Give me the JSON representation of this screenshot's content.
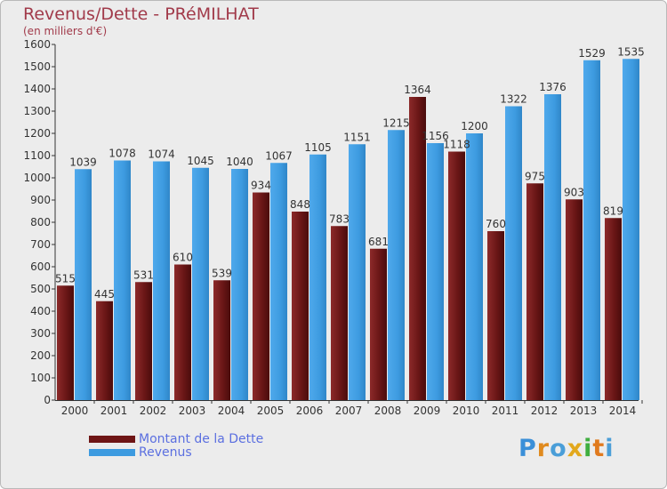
{
  "header": {
    "title": "Revenus/Dette - PRéMILHAT",
    "subtitle": "(en milliers d'€)"
  },
  "colors": {
    "debt": "#7a1c1c",
    "revenue": "#3d9be0",
    "text_accent": "#a13a4a",
    "legend_text": "#5b6fe0"
  },
  "legend": {
    "items": [
      {
        "label": "Montant de la Dette",
        "color": "#6e1515"
      },
      {
        "label": "Revenus",
        "color": "#3d9be0"
      }
    ]
  },
  "logo": {
    "text": "Proxiti"
  },
  "chart_data": {
    "type": "bar",
    "title": "Revenus/Dette - PRéMILHAT",
    "subtitle": "(en milliers d'€)",
    "categories": [
      "2000",
      "2001",
      "2002",
      "2003",
      "2004",
      "2005",
      "2006",
      "2007",
      "2008",
      "2009",
      "2010",
      "2011",
      "2012",
      "2013",
      "2014"
    ],
    "series": [
      {
        "name": "Montant de la Dette",
        "values": [
          515,
          445,
          531,
          610,
          539,
          934,
          848,
          783,
          681,
          1364,
          1118,
          760,
          975,
          903,
          819
        ]
      },
      {
        "name": "Revenus",
        "values": [
          1039,
          1078,
          1074,
          1045,
          1040,
          1067,
          1105,
          1151,
          1215,
          1156,
          1200,
          1322,
          1376,
          1529,
          1535
        ]
      }
    ],
    "ylim": [
      0,
      1600
    ],
    "yticks": [
      0,
      100,
      200,
      300,
      400,
      500,
      600,
      700,
      800,
      900,
      1000,
      1100,
      1200,
      1300,
      1400,
      1500,
      1600
    ],
    "grid": false,
    "legend_position": "bottom-left"
  }
}
